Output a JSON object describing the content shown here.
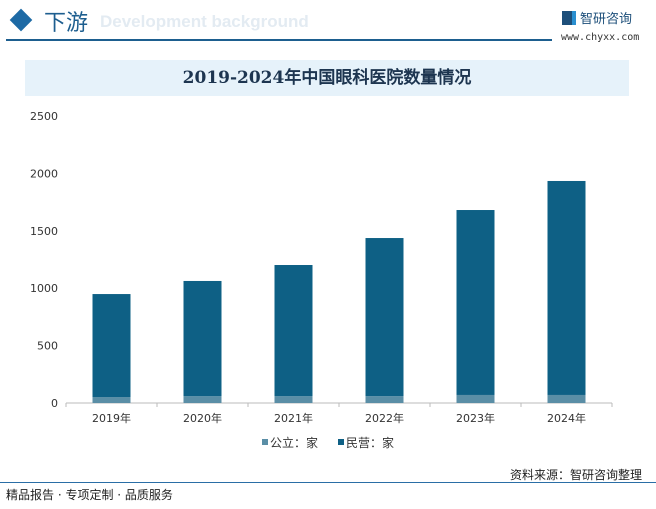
{
  "header": {
    "title": "下游",
    "subtitle": "Development background",
    "logo_text": "智研咨询",
    "url": "www.chyxx.com"
  },
  "colors": {
    "public": "#5a8ea6",
    "private": "#0e6085",
    "accent": "#1d5e8f"
  },
  "chart_data": {
    "type": "bar",
    "stacked": true,
    "title": "2019-2024年中国眼科医院数量情况",
    "categories": [
      "2019年",
      "2020年",
      "2021年",
      "2022年",
      "2023年",
      "2024年"
    ],
    "series": [
      {
        "name": "公立：家",
        "values": [
          52,
          59,
          59,
          60,
          70,
          70
        ]
      },
      {
        "name": "民营：家",
        "values": [
          897,
          1004,
          1143,
          1377,
          1611,
          1864
        ]
      }
    ],
    "ylim": [
      0,
      2500
    ],
    "yticks": [
      "0",
      "500",
      "1000",
      "1500",
      "2000",
      "2500"
    ],
    "legend": "bottom",
    "grid": false
  },
  "footer": {
    "source": "资料来源：智研咨询整理",
    "tagline": "精品报告 · 专项定制 · 品质服务"
  }
}
